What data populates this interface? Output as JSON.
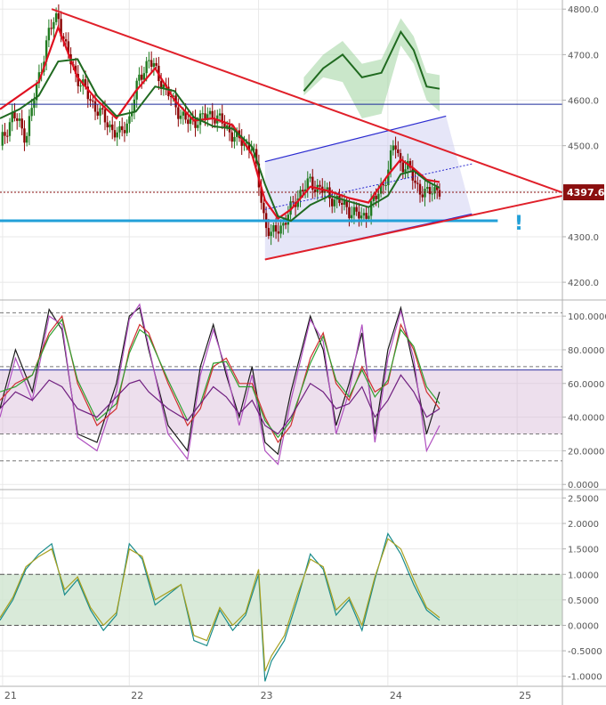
{
  "colors": {
    "background": "#ffffff",
    "grid": "#e8e8e8",
    "separator": "#b0b0b0",
    "axis_text": "#555555",
    "bull_candle": "#1f7a1f",
    "bear_candle": "#8b0000",
    "fast_line": "#e01020",
    "slow_line": "#206a20",
    "trend_red": "#e0202a",
    "channel_blue": "#2a2ad0",
    "support_cyan": "#22a0d8",
    "price_tag": "#8b1010",
    "cloud_green": "#9fd49f",
    "cloud_red": "#f4a8a8",
    "stoch_band": "#d8b8d8",
    "osc_band": "#cfe5cf",
    "osc_line_teal": "#1a8c8c",
    "osc_line_olive": "#a8a020"
  },
  "annotation": "!",
  "chart_data": [
    {
      "type": "candlestick",
      "panel": "price",
      "current_price_label": "4397.6",
      "ylim": [
        4165,
        4820
      ],
      "yticks": [
        {
          "value": 4800,
          "label": "4800.0"
        },
        {
          "value": 4700,
          "label": "4700.0"
        },
        {
          "value": 4600,
          "label": "4600.0"
        },
        {
          "value": 4500,
          "label": "4500.0"
        },
        {
          "value": 4400,
          "label": "4400.0"
        },
        {
          "value": 4300,
          "label": "4300.0"
        },
        {
          "value": 4200,
          "label": "4200.0"
        }
      ],
      "xlim": [
        21.0,
        25.35
      ],
      "xticks": [
        {
          "value": 21.02,
          "label": "21"
        },
        {
          "value": 22.0,
          "label": "22"
        },
        {
          "value": 23.0,
          "label": "23"
        },
        {
          "value": 24.0,
          "label": "24"
        },
        {
          "value": 25.0,
          "label": "25"
        }
      ],
      "close_series": {
        "x": [
          21.0,
          21.1,
          21.2,
          21.3,
          21.38,
          21.45,
          21.5,
          21.58,
          21.7,
          21.8,
          21.92,
          22.0,
          22.08,
          22.15,
          22.25,
          22.35,
          22.45,
          22.55,
          22.65,
          22.75,
          22.85,
          22.95,
          23.0,
          23.05,
          23.1,
          23.15,
          23.2,
          23.3,
          23.4,
          23.5,
          23.6,
          23.7,
          23.8,
          23.9,
          24.0,
          24.05,
          24.1,
          24.15,
          24.2,
          24.25,
          24.3,
          24.35,
          24.4
        ],
        "y": [
          4500,
          4570,
          4520,
          4650,
          4750,
          4790,
          4720,
          4660,
          4600,
          4560,
          4520,
          4560,
          4650,
          4690,
          4640,
          4590,
          4550,
          4560,
          4570,
          4540,
          4510,
          4500,
          4420,
          4330,
          4300,
          4320,
          4330,
          4390,
          4420,
          4400,
          4380,
          4360,
          4340,
          4380,
          4440,
          4510,
          4460,
          4450,
          4430,
          4400,
          4390,
          4410,
          4398
        ]
      },
      "fast_line": {
        "x": [
          21.0,
          21.15,
          21.3,
          21.45,
          21.6,
          21.75,
          21.9,
          22.05,
          22.2,
          22.35,
          22.5,
          22.65,
          22.8,
          22.95,
          23.05,
          23.15,
          23.25,
          23.4,
          23.55,
          23.7,
          23.85,
          24.0,
          24.1,
          24.2,
          24.3,
          24.4
        ],
        "y": [
          4580,
          4610,
          4640,
          4760,
          4650,
          4600,
          4560,
          4620,
          4670,
          4600,
          4555,
          4560,
          4545,
          4480,
          4380,
          4340,
          4360,
          4410,
          4400,
          4385,
          4375,
          4435,
          4470,
          4450,
          4425,
          4420
        ]
      },
      "cloud_upper": {
        "x": [
          23.35,
          23.5,
          23.65,
          23.8,
          23.95,
          24.1,
          24.2,
          24.3,
          24.4
        ],
        "y": [
          4650,
          4700,
          4730,
          4680,
          4690,
          4780,
          4740,
          4660,
          4655
        ]
      },
      "cloud_lower": {
        "x": [
          23.35,
          23.5,
          23.65,
          23.8,
          23.95,
          24.1,
          24.2,
          24.3,
          24.4
        ],
        "y": [
          4610,
          4650,
          4640,
          4560,
          4570,
          4720,
          4680,
          4600,
          4575
        ]
      },
      "lines": [
        {
          "kind": "resistance",
          "from": [
            21.4,
            4800
          ],
          "to": [
            25.35,
            4397
          ]
        },
        {
          "kind": "support",
          "from": [
            23.05,
            4250
          ],
          "to": [
            25.35,
            4390
          ]
        },
        {
          "kind": "channel_top",
          "from": [
            23.05,
            4465
          ],
          "to": [
            24.45,
            4565
          ]
        },
        {
          "kind": "channel_bottom",
          "from": [
            23.05,
            4250
          ],
          "to": [
            24.65,
            4350
          ]
        },
        {
          "kind": "horizontal_blue",
          "price": 4591
        },
        {
          "kind": "horizontal_cyan",
          "price": 4335
        },
        {
          "kind": "current_price",
          "price": 4397.6
        }
      ]
    },
    {
      "type": "line",
      "panel": "stochastic",
      "ylim": [
        -2,
        108
      ],
      "yticks": [
        {
          "value": 100,
          "label": "100.0000"
        },
        {
          "value": 80,
          "label": "80.0000"
        },
        {
          "value": 60,
          "label": "60.0000"
        },
        {
          "value": 40,
          "label": "40.0000"
        },
        {
          "value": 20,
          "label": "20.0000"
        },
        {
          "value": 0,
          "label": "0.0000"
        }
      ],
      "band": [
        30,
        68
      ],
      "levels": [
        102,
        70,
        68,
        30,
        14
      ],
      "x": [
        21.0,
        21.12,
        21.25,
        21.38,
        21.48,
        21.6,
        21.75,
        21.9,
        22.0,
        22.08,
        22.15,
        22.3,
        22.45,
        22.55,
        22.65,
        22.75,
        22.85,
        22.95,
        23.05,
        23.15,
        23.25,
        23.4,
        23.5,
        23.6,
        23.7,
        23.8,
        23.9,
        24.0,
        24.1,
        24.2,
        24.3,
        24.4
      ],
      "series": [
        {
          "values": [
            45,
            80,
            55,
            104,
            92,
            30,
            25,
            60,
            100,
            105,
            80,
            35,
            20,
            70,
            95,
            65,
            40,
            70,
            25,
            18,
            55,
            100,
            80,
            35,
            60,
            90,
            30,
            80,
            105,
            70,
            30,
            55
          ],
          "color": "#1a1a1a"
        },
        {
          "values": [
            40,
            75,
            50,
            100,
            95,
            28,
            20,
            55,
            98,
            107,
            82,
            30,
            15,
            65,
            92,
            68,
            35,
            65,
            20,
            12,
            50,
            98,
            85,
            30,
            55,
            95,
            25,
            75,
            103,
            75,
            20,
            35
          ],
          "color": "#b050c0"
        },
        {
          "values": [
            50,
            60,
            65,
            90,
            100,
            60,
            35,
            45,
            80,
            95,
            90,
            60,
            35,
            45,
            70,
            75,
            60,
            60,
            40,
            25,
            35,
            75,
            90,
            60,
            50,
            70,
            55,
            60,
            95,
            80,
            55,
            45
          ],
          "color": "#d03030"
        },
        {
          "values": [
            55,
            58,
            65,
            88,
            98,
            62,
            38,
            48,
            78,
            92,
            88,
            62,
            38,
            48,
            72,
            73,
            58,
            58,
            38,
            28,
            38,
            72,
            88,
            62,
            52,
            68,
            52,
            62,
            92,
            82,
            58,
            48
          ],
          "color": "#30a030"
        },
        {
          "values": [
            45,
            55,
            50,
            62,
            58,
            45,
            40,
            52,
            60,
            62,
            55,
            45,
            38,
            48,
            58,
            52,
            42,
            50,
            35,
            30,
            40,
            60,
            55,
            45,
            48,
            58,
            40,
            50,
            65,
            55,
            40,
            45
          ],
          "color": "#702080"
        }
      ]
    },
    {
      "type": "line",
      "panel": "oscillator",
      "ylim": [
        -1.18,
        2.63
      ],
      "yticks": [
        {
          "value": 2.5,
          "label": "2.5000"
        },
        {
          "value": 2.0,
          "label": "2.0000"
        },
        {
          "value": 1.5,
          "label": "1.5000"
        },
        {
          "value": 1.0,
          "label": "1.0000"
        },
        {
          "value": 0.5,
          "label": "0.5000"
        },
        {
          "value": 0.0,
          "label": "0.0000"
        },
        {
          "value": -0.5,
          "label": "-0.5000"
        },
        {
          "value": -1.0,
          "label": "-1.0000"
        }
      ],
      "band": [
        0.0,
        1.0
      ],
      "levels": [
        1.0,
        0.0
      ],
      "x": [
        21.0,
        21.1,
        21.2,
        21.3,
        21.4,
        21.5,
        21.6,
        21.7,
        21.8,
        21.9,
        22.0,
        22.1,
        22.2,
        22.3,
        22.4,
        22.5,
        22.6,
        22.7,
        22.8,
        22.9,
        23.0,
        23.05,
        23.1,
        23.2,
        23.3,
        23.4,
        23.5,
        23.6,
        23.7,
        23.8,
        23.9,
        24.0,
        24.1,
        24.2,
        24.3,
        24.4
      ],
      "series": [
        {
          "values": [
            0.1,
            0.5,
            1.1,
            1.4,
            1.6,
            0.6,
            0.9,
            0.3,
            -0.1,
            0.2,
            1.6,
            1.3,
            0.4,
            0.6,
            0.8,
            -0.3,
            -0.4,
            0.3,
            -0.1,
            0.2,
            1.0,
            -1.1,
            -0.7,
            -0.3,
            0.5,
            1.4,
            1.1,
            0.2,
            0.5,
            -0.1,
            0.9,
            1.8,
            1.4,
            0.8,
            0.3,
            0.1
          ],
          "color": "#1a8c8c"
        },
        {
          "values": [
            0.15,
            0.55,
            1.15,
            1.35,
            1.5,
            0.7,
            0.95,
            0.35,
            0.0,
            0.25,
            1.5,
            1.35,
            0.5,
            0.65,
            0.8,
            -0.2,
            -0.3,
            0.35,
            0.0,
            0.25,
            1.1,
            -0.9,
            -0.6,
            -0.2,
            0.6,
            1.3,
            1.15,
            0.3,
            0.55,
            0.0,
            0.95,
            1.7,
            1.5,
            0.9,
            0.35,
            0.15
          ],
          "color": "#a8a020"
        }
      ]
    }
  ]
}
